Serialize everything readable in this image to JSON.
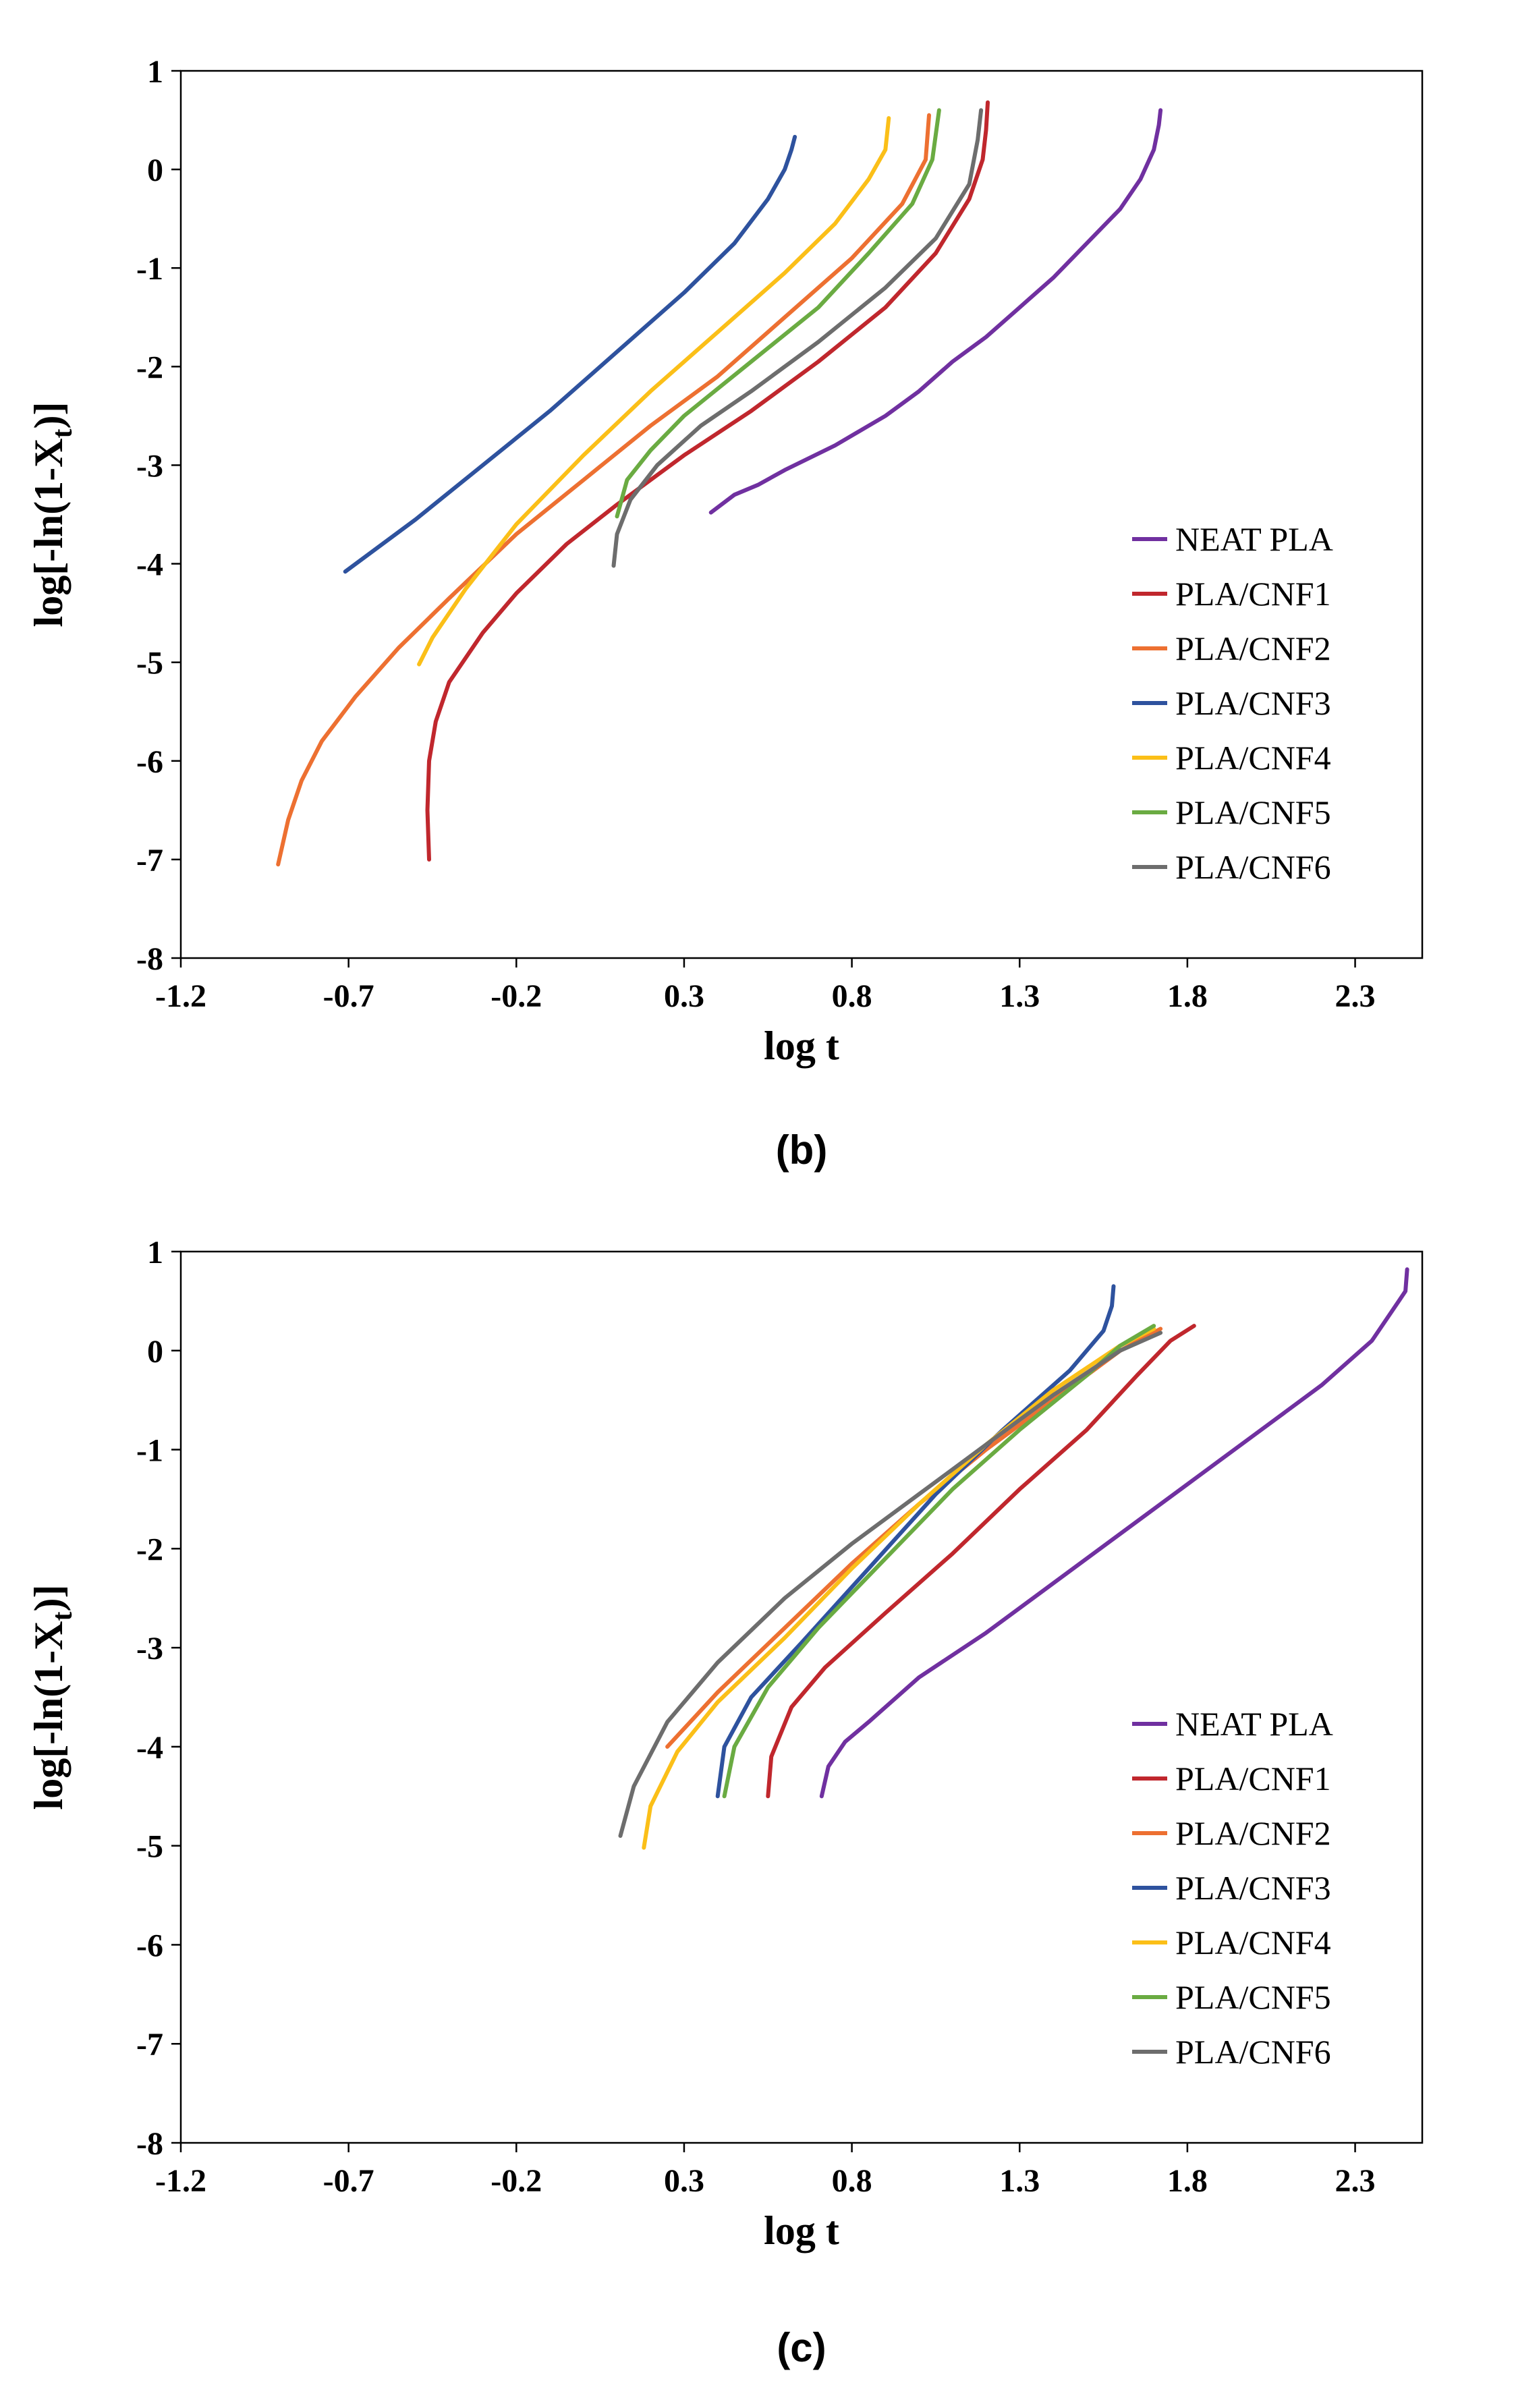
{
  "chart_data": [
    {
      "type": "line",
      "panel_label": "(b)",
      "xlabel": "log t",
      "ylabel": "log[-ln(1-X",
      "ylabel_sub": "t",
      "ylabel_tail": ")]",
      "xlim": [
        -1.2,
        2.5
      ],
      "ylim": [
        -8,
        1
      ],
      "xticks": [
        "-1.2",
        "-0.7",
        "-0.2",
        "0.3",
        "0.8",
        "1.3",
        "1.8",
        "2.3"
      ],
      "yticks": [
        "1",
        "0",
        "-1",
        "-2",
        "-3",
        "-4",
        "-5",
        "-6",
        "-7",
        "-8"
      ],
      "grid": false,
      "legend": "bottom-right",
      "series": [
        {
          "name": "NEAT PLA",
          "color": "#7030a0",
          "points": [
            [
              0.38,
              -3.48
            ],
            [
              0.45,
              -3.3
            ],
            [
              0.52,
              -3.2
            ],
            [
              0.6,
              -3.05
            ],
            [
              0.75,
              -2.8
            ],
            [
              0.9,
              -2.5
            ],
            [
              1.0,
              -2.25
            ],
            [
              1.1,
              -1.95
            ],
            [
              1.2,
              -1.7
            ],
            [
              1.3,
              -1.4
            ],
            [
              1.4,
              -1.1
            ],
            [
              1.5,
              -0.75
            ],
            [
              1.6,
              -0.4
            ],
            [
              1.66,
              -0.1
            ],
            [
              1.7,
              0.2
            ],
            [
              1.715,
              0.45
            ],
            [
              1.72,
              0.6
            ]
          ]
        },
        {
          "name": "PLA/CNF1",
          "color": "#c0272d",
          "points": [
            [
              -0.46,
              -7.0
            ],
            [
              -0.465,
              -6.5
            ],
            [
              -0.46,
              -6.0
            ],
            [
              -0.44,
              -5.6
            ],
            [
              -0.4,
              -5.2
            ],
            [
              -0.3,
              -4.7
            ],
            [
              -0.2,
              -4.3
            ],
            [
              -0.05,
              -3.8
            ],
            [
              0.1,
              -3.4
            ],
            [
              0.3,
              -2.9
            ],
            [
              0.5,
              -2.45
            ],
            [
              0.7,
              -1.95
            ],
            [
              0.9,
              -1.4
            ],
            [
              1.05,
              -0.85
            ],
            [
              1.15,
              -0.3
            ],
            [
              1.19,
              0.1
            ],
            [
              1.2,
              0.4
            ],
            [
              1.205,
              0.68
            ]
          ]
        },
        {
          "name": "PLA/CNF2",
          "color": "#ed7031",
          "points": [
            [
              -0.91,
              -7.05
            ],
            [
              -0.88,
              -6.6
            ],
            [
              -0.84,
              -6.2
            ],
            [
              -0.78,
              -5.8
            ],
            [
              -0.68,
              -5.35
            ],
            [
              -0.55,
              -4.85
            ],
            [
              -0.4,
              -4.35
            ],
            [
              -0.2,
              -3.7
            ],
            [
              0.0,
              -3.15
            ],
            [
              0.2,
              -2.6
            ],
            [
              0.4,
              -2.1
            ],
            [
              0.6,
              -1.5
            ],
            [
              0.8,
              -0.9
            ],
            [
              0.95,
              -0.35
            ],
            [
              1.02,
              0.1
            ],
            [
              1.03,
              0.55
            ]
          ]
        },
        {
          "name": "PLA/CNF3",
          "color": "#2e529e",
          "points": [
            [
              -0.71,
              -4.08
            ],
            [
              -0.5,
              -3.55
            ],
            [
              -0.3,
              -3.0
            ],
            [
              -0.1,
              -2.45
            ],
            [
              0.1,
              -1.85
            ],
            [
              0.3,
              -1.25
            ],
            [
              0.45,
              -0.75
            ],
            [
              0.55,
              -0.3
            ],
            [
              0.6,
              0.0
            ],
            [
              0.62,
              0.2
            ],
            [
              0.63,
              0.33
            ]
          ]
        },
        {
          "name": "PLA/CNF4",
          "color": "#fbbf18",
          "points": [
            [
              -0.49,
              -5.02
            ],
            [
              -0.45,
              -4.75
            ],
            [
              -0.35,
              -4.25
            ],
            [
              -0.2,
              -3.6
            ],
            [
              0.0,
              -2.9
            ],
            [
              0.2,
              -2.25
            ],
            [
              0.4,
              -1.65
            ],
            [
              0.6,
              -1.05
            ],
            [
              0.75,
              -0.55
            ],
            [
              0.85,
              -0.1
            ],
            [
              0.9,
              0.2
            ],
            [
              0.91,
              0.52
            ]
          ]
        },
        {
          "name": "PLA/CNF5",
          "color": "#6aab42",
          "points": [
            [
              0.1,
              -3.52
            ],
            [
              0.13,
              -3.15
            ],
            [
              0.2,
              -2.85
            ],
            [
              0.3,
              -2.5
            ],
            [
              0.5,
              -1.95
            ],
            [
              0.7,
              -1.4
            ],
            [
              0.85,
              -0.85
            ],
            [
              0.98,
              -0.35
            ],
            [
              1.04,
              0.1
            ],
            [
              1.06,
              0.6
            ]
          ]
        },
        {
          "name": "PLA/CNF6",
          "color": "#6d6d6d",
          "points": [
            [
              0.09,
              -4.02
            ],
            [
              0.1,
              -3.7
            ],
            [
              0.14,
              -3.35
            ],
            [
              0.22,
              -3.0
            ],
            [
              0.35,
              -2.6
            ],
            [
              0.5,
              -2.25
            ],
            [
              0.7,
              -1.75
            ],
            [
              0.9,
              -1.2
            ],
            [
              1.05,
              -0.7
            ],
            [
              1.15,
              -0.15
            ],
            [
              1.175,
              0.3
            ],
            [
              1.185,
              0.6
            ]
          ]
        }
      ]
    },
    {
      "type": "line",
      "panel_label": "(c)",
      "xlabel": "log t",
      "ylabel": "log[-ln(1-X",
      "ylabel_sub": "t",
      "ylabel_tail": ")]",
      "xlim": [
        -1.2,
        2.5
      ],
      "ylim": [
        -8,
        1
      ],
      "xticks": [
        "-1.2",
        "-0.7",
        "-0.2",
        "0.3",
        "0.8",
        "1.3",
        "1.8",
        "2.3"
      ],
      "yticks": [
        "1",
        "0",
        "-1",
        "-2",
        "-3",
        "-4",
        "-5",
        "-6",
        "-7",
        "-8"
      ],
      "grid": false,
      "legend": "bottom-right",
      "series": [
        {
          "name": "NEAT PLA",
          "color": "#7030a0",
          "points": [
            [
              0.71,
              -4.5
            ],
            [
              0.73,
              -4.2
            ],
            [
              0.78,
              -3.95
            ],
            [
              0.85,
              -3.75
            ],
            [
              1.0,
              -3.3
            ],
            [
              1.2,
              -2.85
            ],
            [
              1.4,
              -2.35
            ],
            [
              1.6,
              -1.85
            ],
            [
              1.8,
              -1.35
            ],
            [
              2.0,
              -0.85
            ],
            [
              2.2,
              -0.35
            ],
            [
              2.35,
              0.1
            ],
            [
              2.43,
              0.5
            ],
            [
              2.45,
              0.6
            ],
            [
              2.455,
              0.82
            ]
          ]
        },
        {
          "name": "PLA/CNF1",
          "color": "#c0272d",
          "points": [
            [
              0.55,
              -4.5
            ],
            [
              0.56,
              -4.1
            ],
            [
              0.62,
              -3.6
            ],
            [
              0.72,
              -3.2
            ],
            [
              0.9,
              -2.65
            ],
            [
              1.1,
              -2.05
            ],
            [
              1.3,
              -1.4
            ],
            [
              1.5,
              -0.8
            ],
            [
              1.65,
              -0.25
            ],
            [
              1.75,
              0.1
            ],
            [
              1.82,
              0.25
            ]
          ]
        },
        {
          "name": "PLA/CNF2",
          "color": "#ed7031",
          "points": [
            [
              0.25,
              -4.0
            ],
            [
              0.4,
              -3.45
            ],
            [
              0.6,
              -2.8
            ],
            [
              0.8,
              -2.15
            ],
            [
              1.0,
              -1.55
            ],
            [
              1.2,
              -1.0
            ],
            [
              1.4,
              -0.5
            ],
            [
              1.6,
              0.0
            ],
            [
              1.72,
              0.22
            ]
          ]
        },
        {
          "name": "PLA/CNF3",
          "color": "#2e529e",
          "points": [
            [
              0.4,
              -4.5
            ],
            [
              0.42,
              -4.0
            ],
            [
              0.5,
              -3.5
            ],
            [
              0.65,
              -2.95
            ],
            [
              0.85,
              -2.2
            ],
            [
              1.05,
              -1.45
            ],
            [
              1.25,
              -0.8
            ],
            [
              1.45,
              -0.2
            ],
            [
              1.55,
              0.2
            ],
            [
              1.575,
              0.45
            ],
            [
              1.58,
              0.65
            ]
          ]
        },
        {
          "name": "PLA/CNF4",
          "color": "#fbbf18",
          "points": [
            [
              0.18,
              -5.02
            ],
            [
              0.2,
              -4.6
            ],
            [
              0.28,
              -4.05
            ],
            [
              0.4,
              -3.55
            ],
            [
              0.6,
              -2.9
            ],
            [
              0.8,
              -2.2
            ],
            [
              1.0,
              -1.55
            ],
            [
              1.2,
              -0.95
            ],
            [
              1.4,
              -0.4
            ],
            [
              1.6,
              0.05
            ],
            [
              1.7,
              0.22
            ]
          ]
        },
        {
          "name": "PLA/CNF5",
          "color": "#6aab42",
          "points": [
            [
              0.42,
              -4.5
            ],
            [
              0.45,
              -4.0
            ],
            [
              0.55,
              -3.4
            ],
            [
              0.7,
              -2.8
            ],
            [
              0.9,
              -2.1
            ],
            [
              1.1,
              -1.4
            ],
            [
              1.3,
              -0.8
            ],
            [
              1.5,
              -0.25
            ],
            [
              1.6,
              0.05
            ],
            [
              1.7,
              0.25
            ]
          ]
        },
        {
          "name": "PLA/CNF6",
          "color": "#6d6d6d",
          "points": [
            [
              0.11,
              -4.9
            ],
            [
              0.15,
              -4.4
            ],
            [
              0.25,
              -3.75
            ],
            [
              0.4,
              -3.15
            ],
            [
              0.6,
              -2.5
            ],
            [
              0.8,
              -1.95
            ],
            [
              1.0,
              -1.45
            ],
            [
              1.2,
              -0.95
            ],
            [
              1.4,
              -0.45
            ],
            [
              1.6,
              0.0
            ],
            [
              1.72,
              0.18
            ]
          ]
        }
      ]
    }
  ]
}
